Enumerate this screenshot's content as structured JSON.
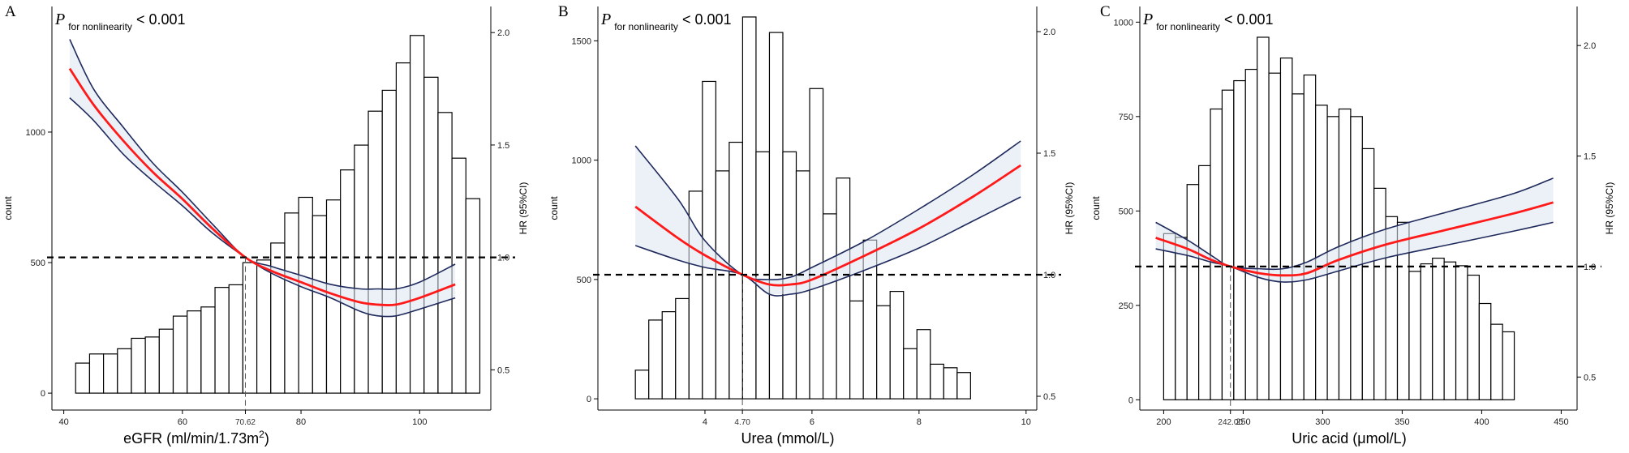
{
  "figure": {
    "annotation": {
      "p": "P",
      "subscript": "for nonlinearity",
      "rest": " < 0.001"
    }
  },
  "chart_data": [
    {
      "panel": "A",
      "type": "bar+line",
      "xlabel": "eGFR (ml/min/1.73m",
      "xlabel_sup": "2",
      "xlabel_tail": ")",
      "ylabel_left": "count",
      "ylabel_right": "HR (95%CI)",
      "x_range": [
        38,
        112
      ],
      "count_range": [
        -40,
        1450
      ],
      "hr_range": [
        0.35,
        2.08
      ],
      "x_ticks": [
        40,
        60,
        80,
        100
      ],
      "x_tick_labels": [
        "40",
        "60",
        "80",
        "100"
      ],
      "count_ticks": [
        0,
        500,
        1000
      ],
      "hr_ticks": [
        0.5,
        1.0,
        1.5,
        2.0
      ],
      "hr_tick_labels": [
        "0.5",
        "1.0",
        "1.5",
        "2.0"
      ],
      "ref_hr": 1.0,
      "ref_x": 70.62,
      "ref_label": "70.62",
      "histogram": {
        "start": 42.0,
        "width": 2.35,
        "counts": [
          115,
          150,
          150,
          170,
          210,
          215,
          245,
          295,
          315,
          330,
          405,
          415,
          500,
          510,
          575,
          690,
          750,
          680,
          740,
          855,
          950,
          1080,
          1160,
          1265,
          1370,
          1210,
          1075,
          900,
          745
        ]
      },
      "series": [
        {
          "name": "HR",
          "x": [
            41,
            45,
            50,
            55,
            60,
            65,
            70.62,
            75,
            80,
            85,
            90,
            93,
            96,
            100,
            106
          ],
          "y": [
            1.84,
            1.68,
            1.52,
            1.38,
            1.26,
            1.13,
            1.0,
            0.94,
            0.89,
            0.84,
            0.8,
            0.79,
            0.79,
            0.82,
            0.88
          ]
        },
        {
          "name": "Upper",
          "x": [
            41,
            45,
            50,
            55,
            60,
            65,
            70.62,
            75,
            80,
            85,
            90,
            93,
            96,
            100,
            106
          ],
          "y": [
            1.97,
            1.75,
            1.58,
            1.42,
            1.29,
            1.15,
            1.0,
            0.96,
            0.92,
            0.88,
            0.86,
            0.86,
            0.86,
            0.89,
            0.97
          ]
        },
        {
          "name": "Lower",
          "x": [
            41,
            45,
            50,
            55,
            60,
            65,
            70.62,
            75,
            80,
            85,
            90,
            93,
            96,
            100,
            106
          ],
          "y": [
            1.71,
            1.61,
            1.46,
            1.34,
            1.23,
            1.11,
            1.0,
            0.93,
            0.87,
            0.82,
            0.76,
            0.74,
            0.74,
            0.77,
            0.82
          ]
        }
      ]
    },
    {
      "panel": "B",
      "type": "bar+line",
      "xlabel": "Urea (mmol/L)",
      "xlabel_sup": "",
      "xlabel_tail": "",
      "ylabel_left": "count",
      "ylabel_right": "HR (95%CI)",
      "x_range": [
        2.0,
        10.2
      ],
      "count_range": [
        -20,
        1610
      ],
      "hr_range": [
        0.47,
        2.07
      ],
      "x_ticks": [
        4,
        6,
        8,
        10
      ],
      "x_tick_labels": [
        "4",
        "6",
        "8",
        "10"
      ],
      "count_ticks": [
        0,
        500,
        1000,
        1500
      ],
      "hr_ticks": [
        0.5,
        1.0,
        1.5,
        2.0
      ],
      "hr_tick_labels": [
        "0.5",
        "1.0",
        "1.5",
        "2.0"
      ],
      "ref_hr": 1.0,
      "ref_x": 4.7,
      "ref_label": "4.70",
      "histogram": {
        "start": 2.7,
        "width": 0.2505,
        "counts": [
          120,
          330,
          365,
          420,
          870,
          1330,
          955,
          1075,
          1600,
          1035,
          1535,
          1035,
          955,
          1300,
          775,
          925,
          410,
          665,
          390,
          450,
          210,
          290,
          145,
          130,
          110
        ]
      },
      "series": [
        {
          "name": "HR",
          "x": [
            2.7,
            3.5,
            4.0,
            4.7,
            5.2,
            5.6,
            6.0,
            7.0,
            8.0,
            9.0,
            9.9
          ],
          "y": [
            1.28,
            1.15,
            1.08,
            1.0,
            0.96,
            0.96,
            0.98,
            1.08,
            1.19,
            1.32,
            1.45
          ]
        },
        {
          "name": "Upper",
          "x": [
            2.7,
            3.5,
            4.0,
            4.7,
            5.2,
            5.6,
            6.0,
            7.0,
            8.0,
            9.0,
            9.9
          ],
          "y": [
            1.53,
            1.31,
            1.14,
            1.0,
            0.98,
            0.99,
            1.03,
            1.14,
            1.27,
            1.41,
            1.55
          ]
        },
        {
          "name": "Lower",
          "x": [
            2.7,
            3.5,
            4.0,
            4.7,
            5.2,
            5.6,
            6.0,
            7.0,
            8.0,
            9.0,
            9.9
          ],
          "y": [
            1.12,
            1.06,
            1.03,
            1.0,
            0.92,
            0.92,
            0.94,
            1.02,
            1.11,
            1.22,
            1.32
          ]
        }
      ]
    },
    {
      "panel": "C",
      "type": "bar+line",
      "xlabel": "Uric acid (μmol/L)",
      "xlabel_sup": "",
      "xlabel_tail": "",
      "ylabel_left": "count",
      "ylabel_right": "HR (95%CI)",
      "x_range": [
        185,
        460
      ],
      "count_range": [
        -10,
        1020
      ],
      "hr_range": [
        0.38,
        2.14
      ],
      "x_ticks": [
        200,
        250,
        300,
        350,
        400,
        450
      ],
      "x_tick_labels": [
        "200",
        "250",
        "300",
        "350",
        "400",
        "450"
      ],
      "count_ticks": [
        0,
        250,
        500,
        750,
        1000
      ],
      "hr_ticks": [
        0.5,
        1.0,
        1.5,
        2.0
      ],
      "hr_tick_labels": [
        "0.5",
        "1.0",
        "1.5",
        "2.0"
      ],
      "ref_hr": 1.0,
      "ref_x": 242.0,
      "ref_label": "242.00",
      "histogram": {
        "start": 200.0,
        "width": 7.35,
        "counts": [
          440,
          430,
          570,
          620,
          770,
          820,
          845,
          875,
          960,
          865,
          905,
          810,
          860,
          780,
          750,
          770,
          750,
          665,
          560,
          485,
          470,
          340,
          360,
          375,
          365,
          355,
          330,
          255,
          200,
          180
        ]
      },
      "series": [
        {
          "name": "HR",
          "x": [
            195,
            215,
            230,
            242,
            260,
            275,
            290,
            310,
            340,
            380,
            420,
            445
          ],
          "y": [
            1.13,
            1.08,
            1.03,
            1.0,
            0.97,
            0.96,
            0.97,
            1.03,
            1.1,
            1.17,
            1.24,
            1.29
          ]
        },
        {
          "name": "Upper",
          "x": [
            195,
            215,
            230,
            242,
            260,
            275,
            290,
            310,
            340,
            380,
            420,
            445
          ],
          "y": [
            1.2,
            1.12,
            1.05,
            1.0,
            0.99,
            0.99,
            1.02,
            1.09,
            1.17,
            1.25,
            1.33,
            1.4
          ]
        },
        {
          "name": "Lower",
          "x": [
            195,
            215,
            230,
            242,
            260,
            275,
            290,
            310,
            340,
            380,
            420,
            445
          ],
          "y": [
            1.08,
            1.05,
            1.02,
            1.0,
            0.95,
            0.93,
            0.94,
            0.98,
            1.04,
            1.1,
            1.16,
            1.2
          ]
        }
      ]
    }
  ]
}
